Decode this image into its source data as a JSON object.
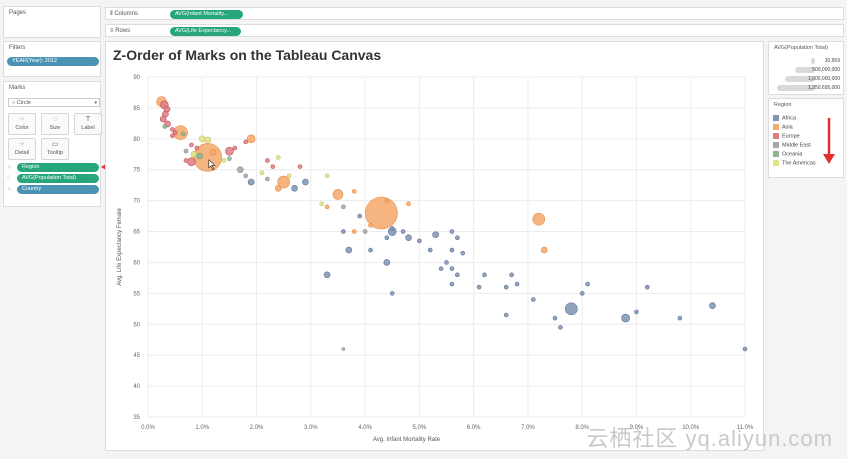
{
  "shelves": {
    "pages_label": "Pages",
    "columns_label": "Columns",
    "columns_pill": "AVG(Infant Mortality...",
    "rows_label": "Rows",
    "rows_pill": "AVG(Life Expectancy..."
  },
  "filters": {
    "title": "Filters",
    "pill": "YEAR(Year): 2012"
  },
  "marks": {
    "title": "Marks",
    "mark_type": "Circle",
    "cards": [
      {
        "label": "Color",
        "icon": "⁘"
      },
      {
        "label": "Size",
        "icon": "◌"
      },
      {
        "label": "Label",
        "icon": "T"
      },
      {
        "label": "Detail",
        "icon": "⁘"
      },
      {
        "label": "Tooltip",
        "icon": "▭"
      }
    ],
    "pills": [
      "Region",
      "AVG(Population Total)",
      "Country"
    ]
  },
  "size_legend": {
    "title": "AVG(Population Total)",
    "entries": [
      "30,959",
      "500,000,000",
      "1,000,000,000",
      "1,350,695,000"
    ]
  },
  "region_legend": {
    "title": "Region",
    "items": [
      {
        "name": "Africa",
        "color": "#7f93b2"
      },
      {
        "name": "Asia",
        "color": "#f4a86a"
      },
      {
        "name": "Europe",
        "color": "#e07b82"
      },
      {
        "name": "Middle East",
        "color": "#a6a6a6"
      },
      {
        "name": "Oceania",
        "color": "#8db68f"
      },
      {
        "name": "The Americas",
        "color": "#dfe38a"
      }
    ]
  },
  "watermark": "云栖社区 yq.aliyun.com",
  "chart_data": {
    "type": "scatter",
    "title": "Z-Order of Marks on the Tableau Canvas",
    "xlabel": "Avg. Infant Mortality Rate",
    "ylabel": "Avg. Life Expectancy Female",
    "xlim": [
      0,
      0.11
    ],
    "ylim": [
      35,
      90
    ],
    "x_ticks": [
      "0.0%",
      "1.0%",
      "2.0%",
      "3.0%",
      "4.0%",
      "5.0%",
      "6.0%",
      "7.0%",
      "8.0%",
      "9.0%",
      "10.0%",
      "11.0%"
    ],
    "y_ticks": [
      "35",
      "40",
      "45",
      "50",
      "55",
      "60",
      "65",
      "70",
      "75",
      "80",
      "85",
      "90"
    ],
    "grid": true,
    "points": [
      {
        "x": 0.0025,
        "y": 86.0,
        "r": 5,
        "region": "Asia"
      },
      {
        "x": 0.003,
        "y": 85.5,
        "r": 4,
        "region": "Europe"
      },
      {
        "x": 0.0035,
        "y": 84.8,
        "r": 3,
        "region": "Europe"
      },
      {
        "x": 0.0032,
        "y": 84.0,
        "r": 3,
        "region": "Europe"
      },
      {
        "x": 0.0028,
        "y": 83.2,
        "r": 3,
        "region": "Europe"
      },
      {
        "x": 0.0036,
        "y": 82.4,
        "r": 3,
        "region": "Europe"
      },
      {
        "x": 0.0031,
        "y": 82.0,
        "r": 2,
        "region": "Oceania"
      },
      {
        "x": 0.0045,
        "y": 81.5,
        "r": 2,
        "region": "Europe"
      },
      {
        "x": 0.005,
        "y": 81.0,
        "r": 2,
        "region": "Europe"
      },
      {
        "x": 0.0045,
        "y": 80.5,
        "r": 2,
        "region": "Europe"
      },
      {
        "x": 0.006,
        "y": 81.0,
        "r": 7,
        "region": "Asia"
      },
      {
        "x": 0.0065,
        "y": 80.8,
        "r": 2,
        "region": "Oceania"
      },
      {
        "x": 0.01,
        "y": 80.0,
        "r": 3,
        "region": "The Americas"
      },
      {
        "x": 0.011,
        "y": 79.8,
        "r": 3,
        "region": "The Americas"
      },
      {
        "x": 0.019,
        "y": 80.0,
        "r": 4,
        "region": "Asia"
      },
      {
        "x": 0.018,
        "y": 79.5,
        "r": 2,
        "region": "Europe"
      },
      {
        "x": 0.008,
        "y": 79.0,
        "r": 2,
        "region": "Europe"
      },
      {
        "x": 0.009,
        "y": 78.5,
        "r": 2,
        "region": "Europe"
      },
      {
        "x": 0.007,
        "y": 78.0,
        "r": 2,
        "region": "Middle East"
      },
      {
        "x": 0.015,
        "y": 78.0,
        "r": 4,
        "region": "Europe"
      },
      {
        "x": 0.016,
        "y": 78.5,
        "r": 2,
        "region": "Europe"
      },
      {
        "x": 0.012,
        "y": 77.8,
        "r": 3,
        "region": "Asia"
      },
      {
        "x": 0.0085,
        "y": 77.5,
        "r": 3,
        "region": "The Americas"
      },
      {
        "x": 0.0095,
        "y": 77.2,
        "r": 3,
        "region": "Oceania"
      },
      {
        "x": 0.011,
        "y": 77.0,
        "r": 14,
        "region": "Asia"
      },
      {
        "x": 0.007,
        "y": 76.5,
        "r": 2,
        "region": "Europe"
      },
      {
        "x": 0.015,
        "y": 76.8,
        "r": 2,
        "region": "Oceania"
      },
      {
        "x": 0.008,
        "y": 76.3,
        "r": 4,
        "region": "Europe"
      },
      {
        "x": 0.014,
        "y": 76.5,
        "r": 2,
        "region": "The Americas"
      },
      {
        "x": 0.022,
        "y": 76.5,
        "r": 2,
        "region": "Europe"
      },
      {
        "x": 0.024,
        "y": 77.0,
        "r": 2,
        "region": "The Americas"
      },
      {
        "x": 0.023,
        "y": 75.5,
        "r": 2,
        "region": "Europe"
      },
      {
        "x": 0.017,
        "y": 75.0,
        "r": 3,
        "region": "Middle East"
      },
      {
        "x": 0.021,
        "y": 74.5,
        "r": 2,
        "region": "The Americas"
      },
      {
        "x": 0.028,
        "y": 75.5,
        "r": 2,
        "region": "Europe"
      },
      {
        "x": 0.018,
        "y": 74.0,
        "r": 2,
        "region": "Middle East"
      },
      {
        "x": 0.026,
        "y": 74.0,
        "r": 2,
        "region": "The Americas"
      },
      {
        "x": 0.019,
        "y": 73.0,
        "r": 3,
        "region": "Africa"
      },
      {
        "x": 0.025,
        "y": 73.0,
        "r": 6,
        "region": "Asia"
      },
      {
        "x": 0.024,
        "y": 72.0,
        "r": 3,
        "region": "Asia"
      },
      {
        "x": 0.029,
        "y": 73.0,
        "r": 3,
        "region": "Africa"
      },
      {
        "x": 0.027,
        "y": 72.0,
        "r": 3,
        "region": "Africa"
      },
      {
        "x": 0.022,
        "y": 73.5,
        "r": 2,
        "region": "Middle East"
      },
      {
        "x": 0.033,
        "y": 74.0,
        "r": 2,
        "region": "The Americas"
      },
      {
        "x": 0.035,
        "y": 71.0,
        "r": 5,
        "region": "Asia"
      },
      {
        "x": 0.038,
        "y": 71.5,
        "r": 2,
        "region": "Asia"
      },
      {
        "x": 0.036,
        "y": 69.0,
        "r": 2,
        "region": "Middle East"
      },
      {
        "x": 0.032,
        "y": 69.5,
        "r": 2,
        "region": "The Americas"
      },
      {
        "x": 0.033,
        "y": 69.0,
        "r": 2,
        "region": "Asia"
      },
      {
        "x": 0.043,
        "y": 68.0,
        "r": 16,
        "region": "Asia"
      },
      {
        "x": 0.044,
        "y": 70.0,
        "r": 2,
        "region": "Asia"
      },
      {
        "x": 0.048,
        "y": 69.5,
        "r": 2,
        "region": "Asia"
      },
      {
        "x": 0.039,
        "y": 67.5,
        "r": 2,
        "region": "Africa"
      },
      {
        "x": 0.041,
        "y": 66.0,
        "r": 2,
        "region": "Asia"
      },
      {
        "x": 0.036,
        "y": 65.0,
        "r": 2,
        "region": "Africa"
      },
      {
        "x": 0.038,
        "y": 65.0,
        "r": 2,
        "region": "Asia"
      },
      {
        "x": 0.04,
        "y": 65.0,
        "r": 2,
        "region": "Middle East"
      },
      {
        "x": 0.045,
        "y": 65.5,
        "r": 2,
        "region": "Africa"
      },
      {
        "x": 0.045,
        "y": 65.0,
        "r": 4,
        "region": "Africa"
      },
      {
        "x": 0.047,
        "y": 65.0,
        "r": 2,
        "region": "Africa"
      },
      {
        "x": 0.044,
        "y": 64.0,
        "r": 2,
        "region": "Africa"
      },
      {
        "x": 0.048,
        "y": 64.0,
        "r": 3,
        "region": "Africa"
      },
      {
        "x": 0.05,
        "y": 63.5,
        "r": 2,
        "region": "Africa"
      },
      {
        "x": 0.037,
        "y": 62.0,
        "r": 3,
        "region": "Africa"
      },
      {
        "x": 0.041,
        "y": 62.0,
        "r": 2,
        "region": "Africa"
      },
      {
        "x": 0.052,
        "y": 62.0,
        "r": 2,
        "region": "Africa"
      },
      {
        "x": 0.044,
        "y": 60.0,
        "r": 3,
        "region": "Africa"
      },
      {
        "x": 0.055,
        "y": 60.0,
        "r": 2,
        "region": "Africa"
      },
      {
        "x": 0.053,
        "y": 64.5,
        "r": 3,
        "region": "Africa"
      },
      {
        "x": 0.056,
        "y": 65.0,
        "r": 2,
        "region": "Africa"
      },
      {
        "x": 0.057,
        "y": 64.0,
        "r": 2,
        "region": "Africa"
      },
      {
        "x": 0.056,
        "y": 62.0,
        "r": 2,
        "region": "Africa"
      },
      {
        "x": 0.058,
        "y": 61.5,
        "r": 2,
        "region": "Africa"
      },
      {
        "x": 0.054,
        "y": 59.0,
        "r": 2,
        "region": "Africa"
      },
      {
        "x": 0.056,
        "y": 59.0,
        "r": 2,
        "region": "Africa"
      },
      {
        "x": 0.057,
        "y": 58.0,
        "r": 2,
        "region": "Africa"
      },
      {
        "x": 0.056,
        "y": 56.5,
        "r": 2,
        "region": "Africa"
      },
      {
        "x": 0.033,
        "y": 58.0,
        "r": 3,
        "region": "Africa"
      },
      {
        "x": 0.045,
        "y": 55.0,
        "r": 2,
        "region": "Africa"
      },
      {
        "x": 0.062,
        "y": 58.0,
        "r": 2,
        "region": "Africa"
      },
      {
        "x": 0.061,
        "y": 56.0,
        "r": 2,
        "region": "Africa"
      },
      {
        "x": 0.066,
        "y": 56.0,
        "r": 2,
        "region": "Africa"
      },
      {
        "x": 0.068,
        "y": 56.5,
        "r": 2,
        "region": "Africa"
      },
      {
        "x": 0.067,
        "y": 58.0,
        "r": 2,
        "region": "Africa"
      },
      {
        "x": 0.072,
        "y": 67.0,
        "r": 6,
        "region": "Asia"
      },
      {
        "x": 0.073,
        "y": 62.0,
        "r": 3,
        "region": "Asia"
      },
      {
        "x": 0.071,
        "y": 54.0,
        "r": 2,
        "region": "Africa"
      },
      {
        "x": 0.066,
        "y": 51.5,
        "r": 2,
        "region": "Africa"
      },
      {
        "x": 0.075,
        "y": 51.0,
        "r": 2,
        "region": "Africa"
      },
      {
        "x": 0.078,
        "y": 52.5,
        "r": 6,
        "region": "Africa"
      },
      {
        "x": 0.076,
        "y": 49.5,
        "r": 2,
        "region": "Africa"
      },
      {
        "x": 0.081,
        "y": 56.5,
        "r": 2,
        "region": "Africa"
      },
      {
        "x": 0.08,
        "y": 55.0,
        "r": 2,
        "region": "Africa"
      },
      {
        "x": 0.088,
        "y": 51.0,
        "r": 4,
        "region": "Africa"
      },
      {
        "x": 0.09,
        "y": 52.0,
        "r": 2,
        "region": "Africa"
      },
      {
        "x": 0.092,
        "y": 56.0,
        "r": 2,
        "region": "Africa"
      },
      {
        "x": 0.098,
        "y": 51.0,
        "r": 2,
        "region": "Africa"
      },
      {
        "x": 0.104,
        "y": 53.0,
        "r": 3,
        "region": "Africa"
      },
      {
        "x": 0.11,
        "y": 46.0,
        "r": 2,
        "region": "Africa"
      },
      {
        "x": 0.036,
        "y": 46.0,
        "r": 1.5,
        "region": "Middle East"
      }
    ]
  }
}
